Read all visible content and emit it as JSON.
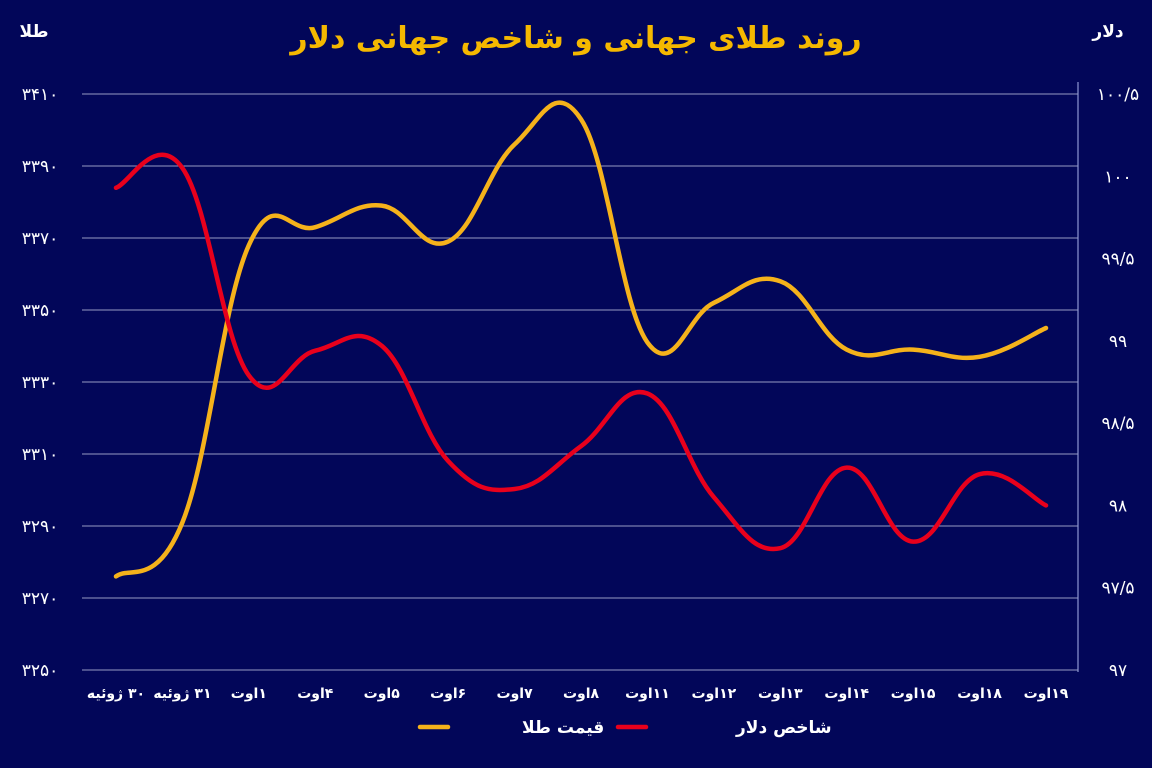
{
  "chart_data": {
    "type": "line",
    "title": "روند طلای جهانی و شاخص جهانی دلار",
    "y_left_label": "طلا",
    "y_right_label": "دلار",
    "y_left_range": [
      3250,
      3410
    ],
    "y_right_range": [
      97,
      100.5
    ],
    "y_left_ticks": [
      "۳۴۱۰",
      "۳۳۹۰",
      "۳۳۷۰",
      "۳۳۵۰",
      "۳۳۳۰",
      "۳۳۱۰",
      "۳۲۹۰",
      "۳۲۷۰",
      "۳۲۵۰"
    ],
    "y_right_ticks": [
      "۱۰۰/۵",
      "۱۰۰",
      "۹۹/۵",
      "۹۹",
      "۹۸/۵",
      "۹۸",
      "۹۷/۵",
      "۹۷"
    ],
    "categories": [
      "۳۰ ژوئیه",
      "۳۱ ژوئیه",
      "۱اوت",
      "۴اوت",
      "۵اوت",
      "۶اوت",
      "۷اوت",
      "۸اوت",
      "۱۱اوت",
      "۱۲اوت",
      "۱۳اوت",
      "۱۴اوت",
      "۱۵اوت",
      "۱۸اوت",
      "۱۹اوت"
    ],
    "grid": true,
    "legend_position": "bottom-center",
    "series": [
      {
        "name": "قیمت طلا",
        "axis": "left",
        "color": "#f5b21b",
        "values": [
          3276,
          3291,
          3368,
          3373,
          3379,
          3369,
          3396,
          3403,
          3341,
          3352,
          3358,
          3339,
          3339,
          3337,
          3345
        ]
      },
      {
        "name": "شاخص دلار",
        "axis": "right",
        "color": "#e8001c",
        "values": [
          99.93,
          100.05,
          98.79,
          98.94,
          98.97,
          98.27,
          98.1,
          98.36,
          98.68,
          98.05,
          97.74,
          98.23,
          97.78,
          98.19,
          98.0
        ]
      }
    ]
  }
}
